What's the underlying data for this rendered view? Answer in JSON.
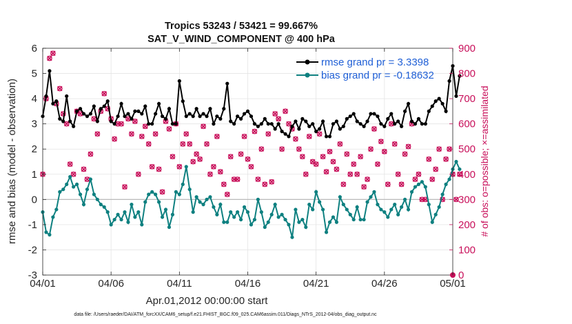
{
  "chart_data": {
    "type": "line",
    "title": "Tropics 53243 / 53421 = 99.667%",
    "subtitle": "SAT_V_WIND_COMPONENT @ 400 hPa",
    "xlabel": "Apr.01,2012 00:00:00 start",
    "ylabel": "rmse and bias (model - observation)",
    "ylabel_right": "# of obs: o=possible; ×=assimilated",
    "ylim": [
      -3,
      6
    ],
    "ylim_right": [
      0,
      900
    ],
    "xlim": [
      0,
      30
    ],
    "x_ticks": [
      0,
      5,
      10,
      15,
      20,
      25,
      30
    ],
    "x_tick_labels": [
      "04/01",
      "04/06",
      "04/11",
      "04/16",
      "04/21",
      "04/26",
      "05/01"
    ],
    "y_ticks": [
      -3,
      -2,
      -1,
      0,
      1,
      2,
      3,
      4,
      5,
      6
    ],
    "y_tick_labels": [
      "-3",
      "-2",
      "-1",
      "0",
      "1",
      "2",
      "3",
      "4",
      "5",
      "6"
    ],
    "y_ticks_right": [
      0,
      100,
      200,
      300,
      400,
      500,
      600,
      700,
      800,
      900
    ],
    "y_tick_labels_right": [
      "0",
      "100",
      "200",
      "300",
      "400",
      "500",
      "600",
      "700",
      "800",
      "900"
    ],
    "grid": true,
    "legend_position": "top-right",
    "footnote": "data file: /Users/raeder/DAI/ATM_forcXX/CAM6_setup/f.e21.FHIST_BGC.f09_025.CAM6assim.011/Diags_NTrS_2012-04/obs_diag_output.nc",
    "x_step_days": 0.25,
    "series": [
      {
        "name": "rmse grand pr = 3.3398",
        "color": "#000000",
        "marker": "circle",
        "values": [
          3.3,
          4.1,
          5.1,
          3.8,
          3.9,
          3.2,
          3.1,
          4.1,
          3.1,
          2.9,
          3.5,
          3.6,
          3.4,
          3.3,
          3.4,
          3.7,
          3.1,
          3.6,
          3.7,
          3.9,
          3.1,
          3.0,
          3.3,
          3.8,
          3.3,
          3.4,
          3.2,
          3.5,
          3.5,
          3.4,
          3.7,
          3.0,
          3.0,
          3.4,
          3.8,
          3.3,
          3.2,
          3.6,
          3.0,
          3.0,
          4.7,
          3.9,
          3.3,
          3.4,
          3.3,
          3.6,
          3.3,
          3.4,
          3.3,
          3.6,
          3.0,
          3.3,
          3.2,
          3.6,
          4.6,
          3.1,
          3.0,
          3.3,
          3.2,
          3.4,
          3.5,
          3.3,
          3.0,
          2.9,
          3.0,
          3.2,
          3.0,
          3.0,
          2.8,
          3.0,
          2.7,
          2.6,
          2.5,
          2.9,
          3.1,
          2.8,
          3.2,
          3.1,
          2.9,
          3.0,
          2.7,
          2.8,
          3.1,
          2.5,
          2.5,
          3.0,
          3.1,
          2.8,
          2.9,
          3.2,
          3.3,
          3.4,
          3.1,
          3.0,
          2.9,
          3.1,
          3.4,
          3.4,
          3.3,
          3.0,
          2.9,
          3.2,
          3.4,
          3.0,
          3.1,
          2.9,
          3.5,
          3.8,
          3.1,
          3.0,
          3.2,
          3.0,
          3.0,
          3.5,
          3.7,
          3.9,
          4.0,
          3.8,
          3.5,
          4.7,
          5.3,
          4.1,
          4.9
        ]
      },
      {
        "name": "bias grand pr = -0.18632",
        "color": "#0e8080",
        "marker": "circle",
        "values": [
          -0.5,
          -1.3,
          -1.4,
          -0.7,
          -0.4,
          0.3,
          0.4,
          0.6,
          0.9,
          0.5,
          0.6,
          0.2,
          -0.2,
          0.4,
          0.8,
          0.2,
          0.0,
          -0.2,
          -0.3,
          -0.5,
          -1.0,
          -0.8,
          -0.6,
          -0.8,
          -0.5,
          -0.9,
          -0.2,
          -0.7,
          -0.5,
          -1.0,
          -0.1,
          0.2,
          0.3,
          0.2,
          -0.1,
          -0.7,
          -0.4,
          -1.1,
          -0.6,
          0.3,
          0.2,
          0.6,
          1.3,
          0.4,
          -0.5,
          0.1,
          -0.1,
          -0.2,
          0.0,
          0.1,
          -0.3,
          -0.6,
          -0.2,
          -0.9,
          -0.9,
          -0.5,
          -0.7,
          -0.5,
          -0.8,
          -0.3,
          -0.5,
          -1.0,
          -0.8,
          0.0,
          -0.5,
          -1.1,
          -0.9,
          -0.6,
          -0.2,
          -0.7,
          -0.6,
          -0.8,
          -1.0,
          -1.5,
          -0.4,
          -0.9,
          -0.8,
          -1.1,
          -0.2,
          -0.4,
          0.3,
          -0.1,
          -0.4,
          -1.3,
          -0.9,
          -0.7,
          -0.9,
          0.1,
          -0.2,
          -0.4,
          -0.6,
          -0.8,
          -0.3,
          -0.8,
          -0.8,
          -0.1,
          0.1,
          0.3,
          -0.2,
          -0.4,
          -0.5,
          -0.7,
          -0.4,
          -0.2,
          -0.6,
          -0.3,
          0.0,
          -0.4,
          0.3,
          0.5,
          0.6,
          0.7,
          0.5,
          -0.2,
          -0.9,
          -0.6,
          -0.3,
          0.2,
          0.6,
          0.8,
          1.2,
          1.5,
          1.2
        ]
      },
      {
        "name": "# of obs possible (right axis)",
        "color": "#c80f5a",
        "marker": "circle-open",
        "values": [
          400,
          700,
          860,
          880,
          680,
          740,
          640,
          600,
          440,
          400,
          650,
          640,
          420,
          380,
          480,
          620,
          560,
          650,
          720,
          660,
          620,
          540,
          600,
          600,
          350,
          620,
          560,
          610,
          400,
          550,
          590,
          520,
          430,
          560,
          420,
          330,
          610,
          580,
          470,
          600,
          430,
          520,
          560,
          520,
          450,
          480,
          460,
          590,
          520,
          400,
          430,
          550,
          410,
          360,
          320,
          470,
          380,
          380,
          480,
          550,
          460,
          430,
          570,
          380,
          500,
          360,
          560,
          370,
          640,
          620,
          500,
          650,
          600,
          580,
          540,
          500,
          470,
          400,
          550,
          450,
          440,
          560,
          470,
          410,
          490,
          450,
          420,
          520,
          360,
          480,
          400,
          440,
          400,
          470,
          350,
          380,
          500,
          580,
          440,
          530,
          490,
          360,
          600,
          520,
          400,
          360,
          480,
          510,
          600,
          380,
          400,
          300,
          300,
          460,
          380,
          420,
          500,
          300,
          460,
          500,
          400,
          300,
          400
        ]
      },
      {
        "name": "# of obs assimilated (right axis)",
        "color": "#c80f5a",
        "marker": "x",
        "values": [
          400,
          700,
          860,
          880,
          680,
          740,
          640,
          600,
          440,
          400,
          650,
          640,
          420,
          380,
          480,
          620,
          560,
          650,
          720,
          660,
          620,
          540,
          600,
          600,
          350,
          620,
          560,
          610,
          400,
          550,
          590,
          520,
          430,
          560,
          420,
          330,
          610,
          580,
          470,
          600,
          430,
          520,
          560,
          520,
          450,
          480,
          460,
          590,
          520,
          400,
          430,
          550,
          410,
          360,
          320,
          470,
          380,
          380,
          480,
          550,
          460,
          430,
          570,
          380,
          500,
          360,
          560,
          370,
          640,
          620,
          500,
          650,
          600,
          580,
          540,
          500,
          470,
          400,
          550,
          450,
          440,
          560,
          470,
          410,
          490,
          450,
          420,
          520,
          360,
          480,
          400,
          440,
          400,
          470,
          350,
          380,
          500,
          580,
          440,
          530,
          490,
          360,
          600,
          520,
          400,
          360,
          480,
          510,
          600,
          380,
          400,
          300,
          300,
          460,
          380,
          420,
          500,
          300,
          460,
          500,
          400,
          300,
          400
        ]
      }
    ],
    "annotations": [
      {
        "text": "0",
        "axis": "right",
        "at_x": 30,
        "at_y_right": 0,
        "note": "zero-count marker at end of x-axis"
      }
    ]
  }
}
